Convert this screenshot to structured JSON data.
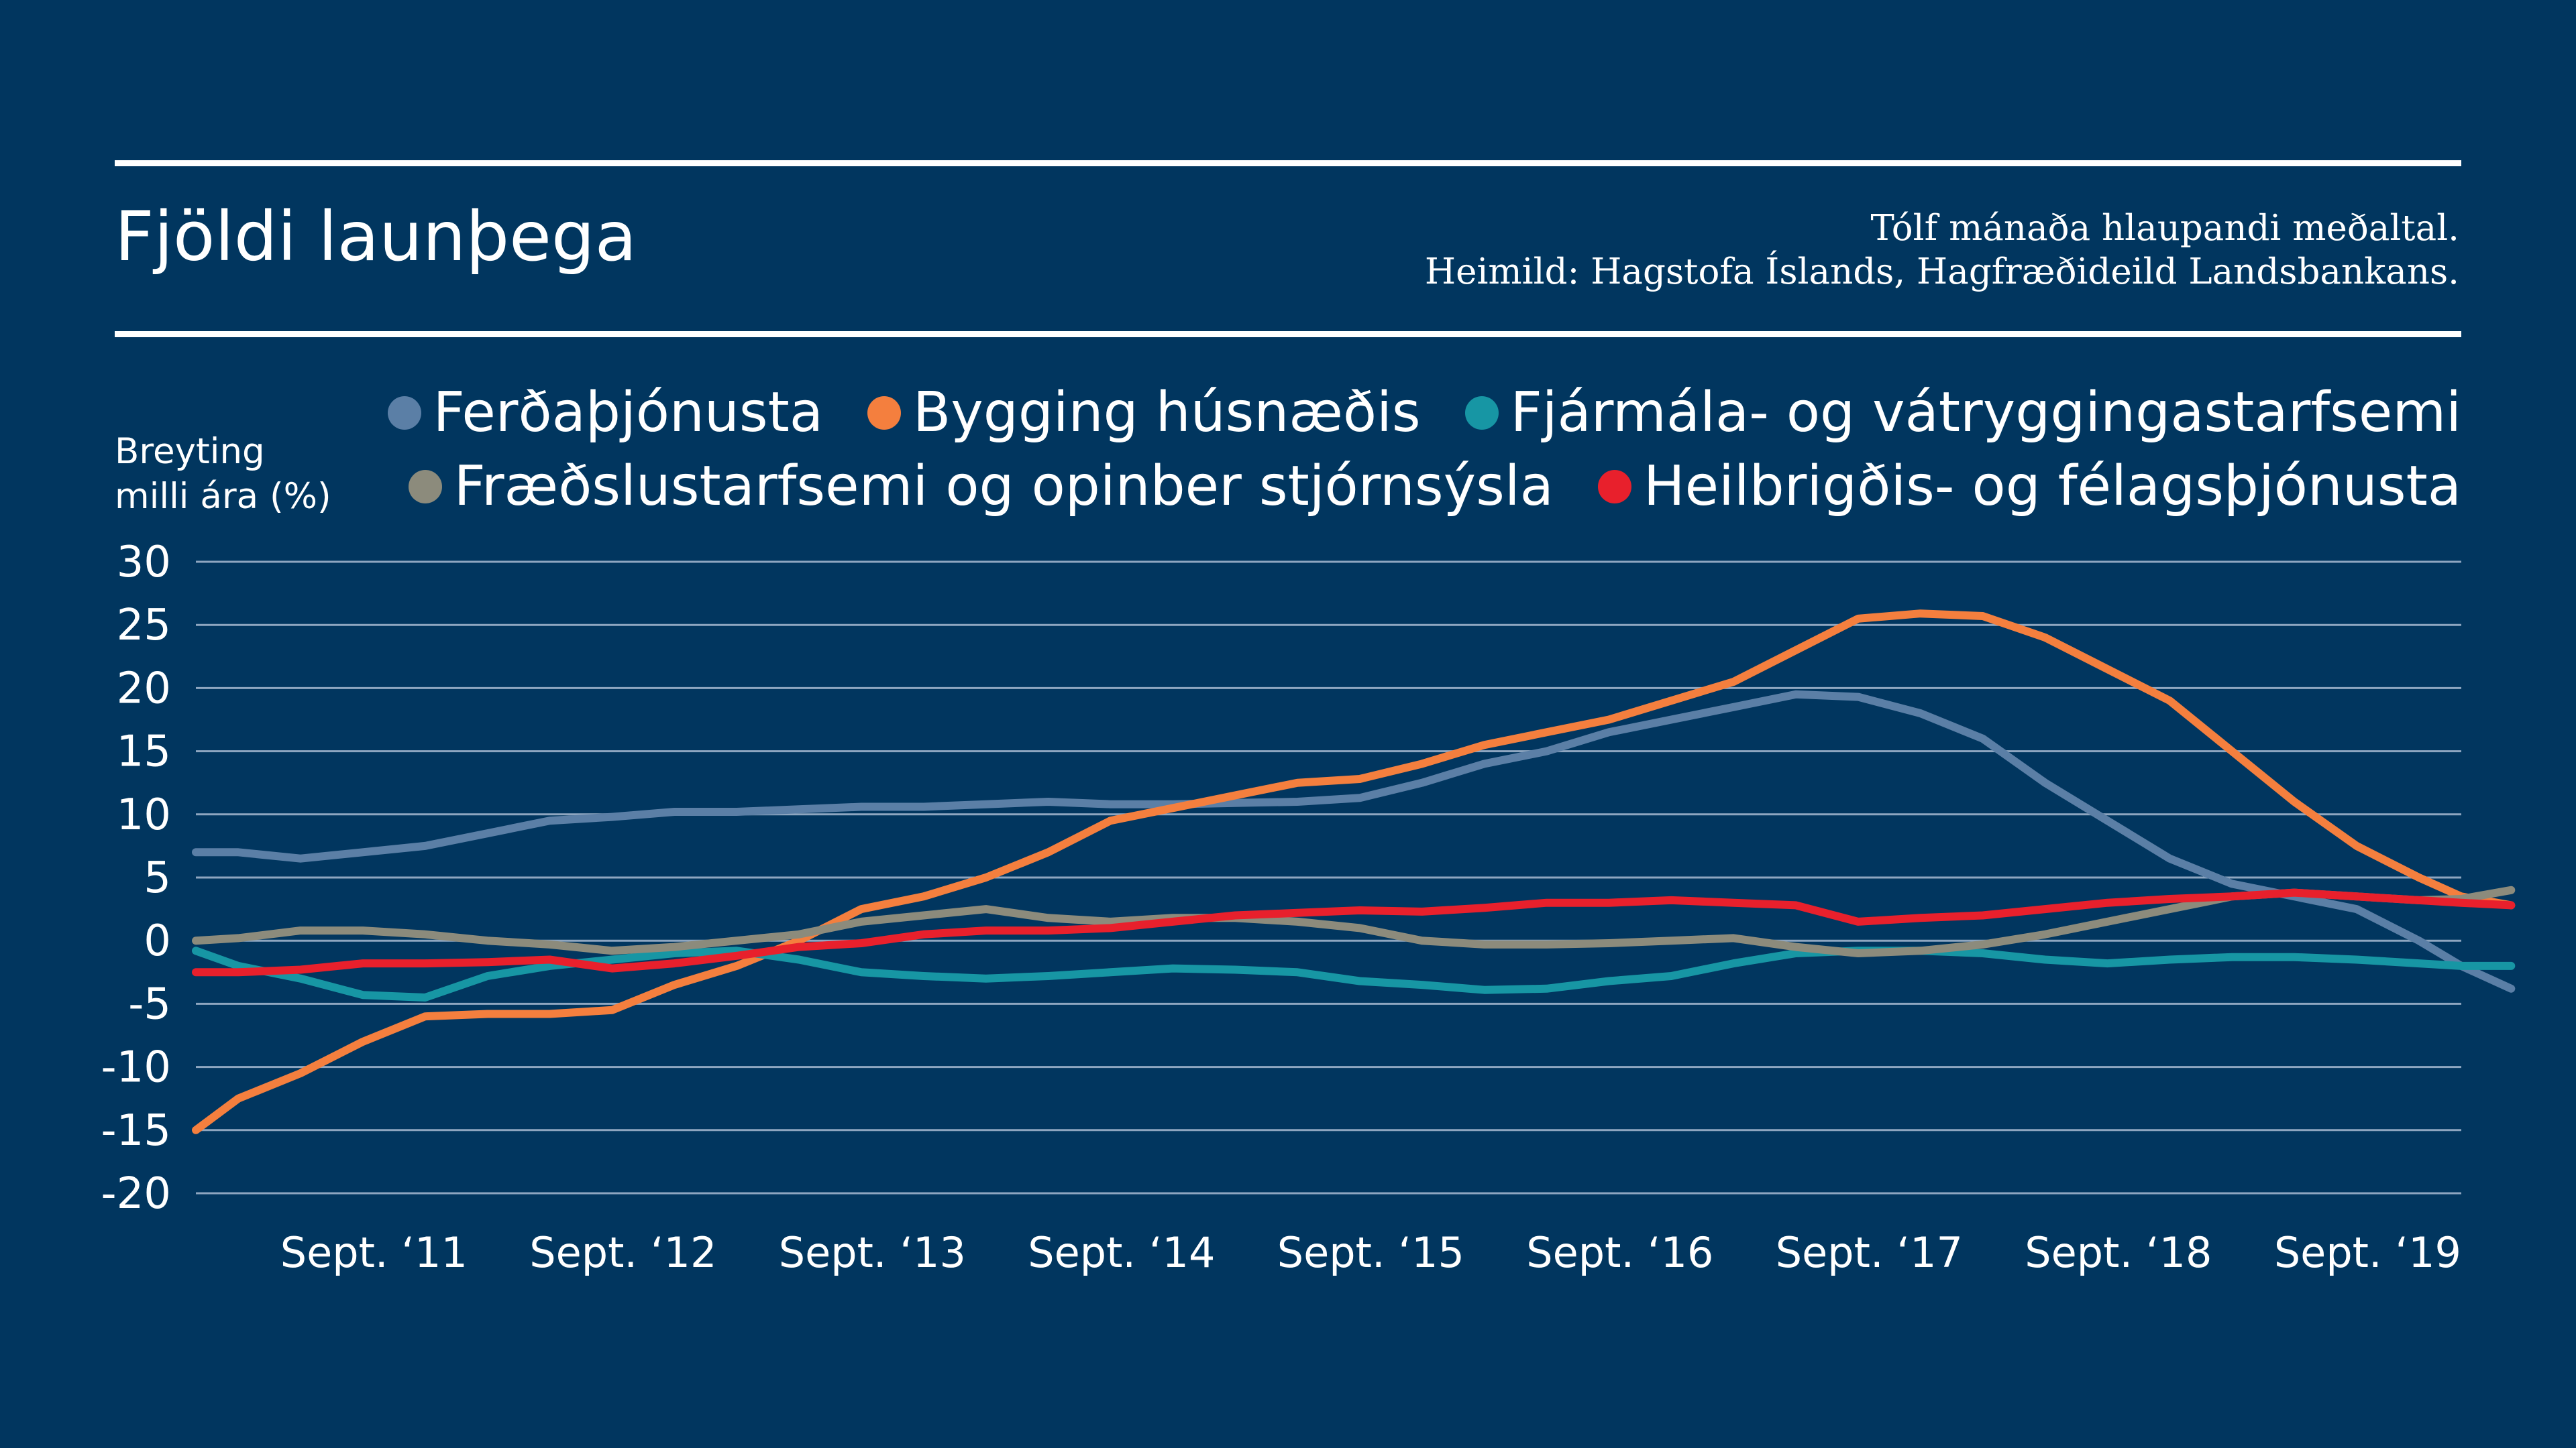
{
  "header": {
    "title": "Fjöldi launþega",
    "note_line1": "Tólf mánaða hlaupandi meðaltal.",
    "note_line2": "Heimild: Hagstofa Íslands, Hagfræðideild Landsbankans."
  },
  "chart_data": {
    "type": "line",
    "title": "Fjöldi launþega",
    "ylabel_line1": "Breyting",
    "ylabel_line2": "milli ára (%)",
    "ylim": [
      -20,
      30
    ],
    "yticks": [
      30,
      25,
      20,
      15,
      10,
      5,
      0,
      -5,
      -10,
      -15,
      -20
    ],
    "xlim": [
      2010.58,
      2019.67
    ],
    "xticks": [
      {
        "x": 2011.67,
        "label": "Sept. ‘11"
      },
      {
        "x": 2012.67,
        "label": "Sept. ‘12"
      },
      {
        "x": 2013.67,
        "label": "Sept. ‘13"
      },
      {
        "x": 2014.67,
        "label": "Sept. ‘14"
      },
      {
        "x": 2015.67,
        "label": "Sept. ‘15"
      },
      {
        "x": 2016.67,
        "label": "Sept. ‘16"
      },
      {
        "x": 2017.67,
        "label": "Sept. ‘17"
      },
      {
        "x": 2018.67,
        "label": "Sept. ‘18"
      },
      {
        "x": 2019.67,
        "label": "Sept. ‘19"
      }
    ],
    "grid": true,
    "legend_position": "top",
    "series": [
      {
        "name": "Ferðaþjónusta",
        "color": "#5b7fa6",
        "points": [
          [
            2010.58,
            7
          ],
          [
            2010.75,
            7
          ],
          [
            2011.0,
            6.5
          ],
          [
            2011.25,
            7
          ],
          [
            2011.5,
            7.5
          ],
          [
            2011.75,
            8.5
          ],
          [
            2012.0,
            9.5
          ],
          [
            2012.25,
            9.8
          ],
          [
            2012.5,
            10.2
          ],
          [
            2012.75,
            10.2
          ],
          [
            2013.0,
            10.4
          ],
          [
            2013.25,
            10.6
          ],
          [
            2013.5,
            10.6
          ],
          [
            2013.75,
            10.8
          ],
          [
            2014.0,
            11
          ],
          [
            2014.25,
            10.8
          ],
          [
            2014.5,
            10.8
          ],
          [
            2014.75,
            10.9
          ],
          [
            2015.0,
            11
          ],
          [
            2015.25,
            11.3
          ],
          [
            2015.5,
            12.5
          ],
          [
            2015.75,
            14
          ],
          [
            2016.0,
            15
          ],
          [
            2016.25,
            16.5
          ],
          [
            2016.5,
            17.5
          ],
          [
            2016.75,
            18.5
          ],
          [
            2017.0,
            19.5
          ],
          [
            2017.25,
            19.3
          ],
          [
            2017.5,
            18
          ],
          [
            2017.75,
            16
          ],
          [
            2018.0,
            12.5
          ],
          [
            2018.25,
            9.5
          ],
          [
            2018.5,
            6.5
          ],
          [
            2018.75,
            4.5
          ],
          [
            2019.0,
            3.5
          ],
          [
            2019.25,
            2.5
          ],
          [
            2019.5,
            0
          ],
          [
            2019.67,
            -2
          ],
          [
            2019.87,
            -3.8
          ]
        ]
      },
      {
        "name": "Bygging húsnæðis",
        "color": "#f47f3e",
        "points": [
          [
            2010.58,
            -15
          ],
          [
            2010.75,
            -12.5
          ],
          [
            2011.0,
            -10.5
          ],
          [
            2011.25,
            -8
          ],
          [
            2011.5,
            -6
          ],
          [
            2011.75,
            -5.8
          ],
          [
            2012.0,
            -5.8
          ],
          [
            2012.25,
            -5.5
          ],
          [
            2012.5,
            -3.5
          ],
          [
            2012.75,
            -2
          ],
          [
            2013.0,
            0
          ],
          [
            2013.25,
            2.5
          ],
          [
            2013.5,
            3.5
          ],
          [
            2013.75,
            5
          ],
          [
            2014.0,
            7
          ],
          [
            2014.25,
            9.5
          ],
          [
            2014.5,
            10.5
          ],
          [
            2014.75,
            11.5
          ],
          [
            2015.0,
            12.5
          ],
          [
            2015.25,
            12.8
          ],
          [
            2015.5,
            14
          ],
          [
            2015.75,
            15.5
          ],
          [
            2016.0,
            16.5
          ],
          [
            2016.25,
            17.5
          ],
          [
            2016.5,
            19
          ],
          [
            2016.75,
            20.5
          ],
          [
            2017.0,
            23
          ],
          [
            2017.25,
            25.5
          ],
          [
            2017.5,
            25.9
          ],
          [
            2017.75,
            25.7
          ],
          [
            2018.0,
            24
          ],
          [
            2018.25,
            21.5
          ],
          [
            2018.5,
            19
          ],
          [
            2018.75,
            15
          ],
          [
            2019.0,
            11
          ],
          [
            2019.25,
            7.5
          ],
          [
            2019.5,
            5
          ],
          [
            2019.67,
            3.5
          ],
          [
            2019.87,
            2.8
          ]
        ]
      },
      {
        "name": "Fjármála- og vátryggingastarfsemi",
        "color": "#1796a4",
        "points": [
          [
            2010.58,
            -0.8
          ],
          [
            2010.75,
            -2
          ],
          [
            2011.0,
            -3
          ],
          [
            2011.25,
            -4.3
          ],
          [
            2011.5,
            -4.5
          ],
          [
            2011.75,
            -2.8
          ],
          [
            2012.0,
            -2
          ],
          [
            2012.25,
            -1.5
          ],
          [
            2012.5,
            -1
          ],
          [
            2012.75,
            -0.8
          ],
          [
            2013.0,
            -1.5
          ],
          [
            2013.25,
            -2.5
          ],
          [
            2013.5,
            -2.8
          ],
          [
            2013.75,
            -3
          ],
          [
            2014.0,
            -2.8
          ],
          [
            2014.25,
            -2.5
          ],
          [
            2014.5,
            -2.2
          ],
          [
            2014.75,
            -2.3
          ],
          [
            2015.0,
            -2.5
          ],
          [
            2015.25,
            -3.2
          ],
          [
            2015.5,
            -3.5
          ],
          [
            2015.75,
            -3.9
          ],
          [
            2016.0,
            -3.8
          ],
          [
            2016.25,
            -3.2
          ],
          [
            2016.5,
            -2.8
          ],
          [
            2016.75,
            -1.8
          ],
          [
            2017.0,
            -1
          ],
          [
            2017.25,
            -0.8
          ],
          [
            2017.5,
            -0.8
          ],
          [
            2017.75,
            -1
          ],
          [
            2018.0,
            -1.5
          ],
          [
            2018.25,
            -1.8
          ],
          [
            2018.5,
            -1.5
          ],
          [
            2018.75,
            -1.3
          ],
          [
            2019.0,
            -1.3
          ],
          [
            2019.25,
            -1.5
          ],
          [
            2019.5,
            -1.8
          ],
          [
            2019.67,
            -2
          ],
          [
            2019.87,
            -2
          ]
        ]
      },
      {
        "name": "Fræðslustarfsemi og opinber stjórnsýsla",
        "color": "#8c8b7c",
        "points": [
          [
            2010.58,
            0
          ],
          [
            2010.75,
            0.2
          ],
          [
            2011.0,
            0.8
          ],
          [
            2011.25,
            0.8
          ],
          [
            2011.5,
            0.5
          ],
          [
            2011.75,
            0
          ],
          [
            2012.0,
            -0.3
          ],
          [
            2012.25,
            -0.8
          ],
          [
            2012.5,
            -0.5
          ],
          [
            2012.75,
            0
          ],
          [
            2013.0,
            0.5
          ],
          [
            2013.25,
            1.5
          ],
          [
            2013.5,
            2
          ],
          [
            2013.75,
            2.5
          ],
          [
            2014.0,
            1.8
          ],
          [
            2014.25,
            1.5
          ],
          [
            2014.5,
            1.8
          ],
          [
            2014.75,
            1.8
          ],
          [
            2015.0,
            1.5
          ],
          [
            2015.25,
            1
          ],
          [
            2015.5,
            0
          ],
          [
            2015.75,
            -0.3
          ],
          [
            2016.0,
            -0.3
          ],
          [
            2016.25,
            -0.2
          ],
          [
            2016.5,
            0
          ],
          [
            2016.75,
            0.2
          ],
          [
            2017.0,
            -0.5
          ],
          [
            2017.25,
            -1
          ],
          [
            2017.5,
            -0.8
          ],
          [
            2017.75,
            -0.3
          ],
          [
            2018.0,
            0.5
          ],
          [
            2018.25,
            1.5
          ],
          [
            2018.5,
            2.5
          ],
          [
            2018.75,
            3.5
          ],
          [
            2019.0,
            3.8
          ],
          [
            2019.25,
            3.5
          ],
          [
            2019.5,
            3.2
          ],
          [
            2019.67,
            3.3
          ],
          [
            2019.87,
            4
          ]
        ]
      },
      {
        "name": "Heilbrigðis- og félagsþjónusta",
        "color": "#e8202c",
        "points": [
          [
            2010.58,
            -2.5
          ],
          [
            2010.75,
            -2.5
          ],
          [
            2011.0,
            -2.3
          ],
          [
            2011.25,
            -1.8
          ],
          [
            2011.5,
            -1.8
          ],
          [
            2011.75,
            -1.7
          ],
          [
            2012.0,
            -1.5
          ],
          [
            2012.25,
            -2.2
          ],
          [
            2012.5,
            -1.8
          ],
          [
            2012.75,
            -1.2
          ],
          [
            2013.0,
            -0.5
          ],
          [
            2013.25,
            -0.2
          ],
          [
            2013.5,
            0.5
          ],
          [
            2013.75,
            0.8
          ],
          [
            2014.0,
            0.8
          ],
          [
            2014.25,
            1
          ],
          [
            2014.5,
            1.5
          ],
          [
            2014.75,
            2
          ],
          [
            2015.0,
            2.2
          ],
          [
            2015.25,
            2.4
          ],
          [
            2015.5,
            2.3
          ],
          [
            2015.75,
            2.6
          ],
          [
            2016.0,
            3
          ],
          [
            2016.25,
            3
          ],
          [
            2016.5,
            3.2
          ],
          [
            2016.75,
            3
          ],
          [
            2017.0,
            2.8
          ],
          [
            2017.25,
            1.5
          ],
          [
            2017.5,
            1.8
          ],
          [
            2017.75,
            2
          ],
          [
            2018.0,
            2.5
          ],
          [
            2018.25,
            3
          ],
          [
            2018.5,
            3.3
          ],
          [
            2018.75,
            3.5
          ],
          [
            2019.0,
            3.8
          ],
          [
            2019.25,
            3.5
          ],
          [
            2019.5,
            3.2
          ],
          [
            2019.67,
            3
          ],
          [
            2019.87,
            2.8
          ]
        ]
      }
    ]
  }
}
